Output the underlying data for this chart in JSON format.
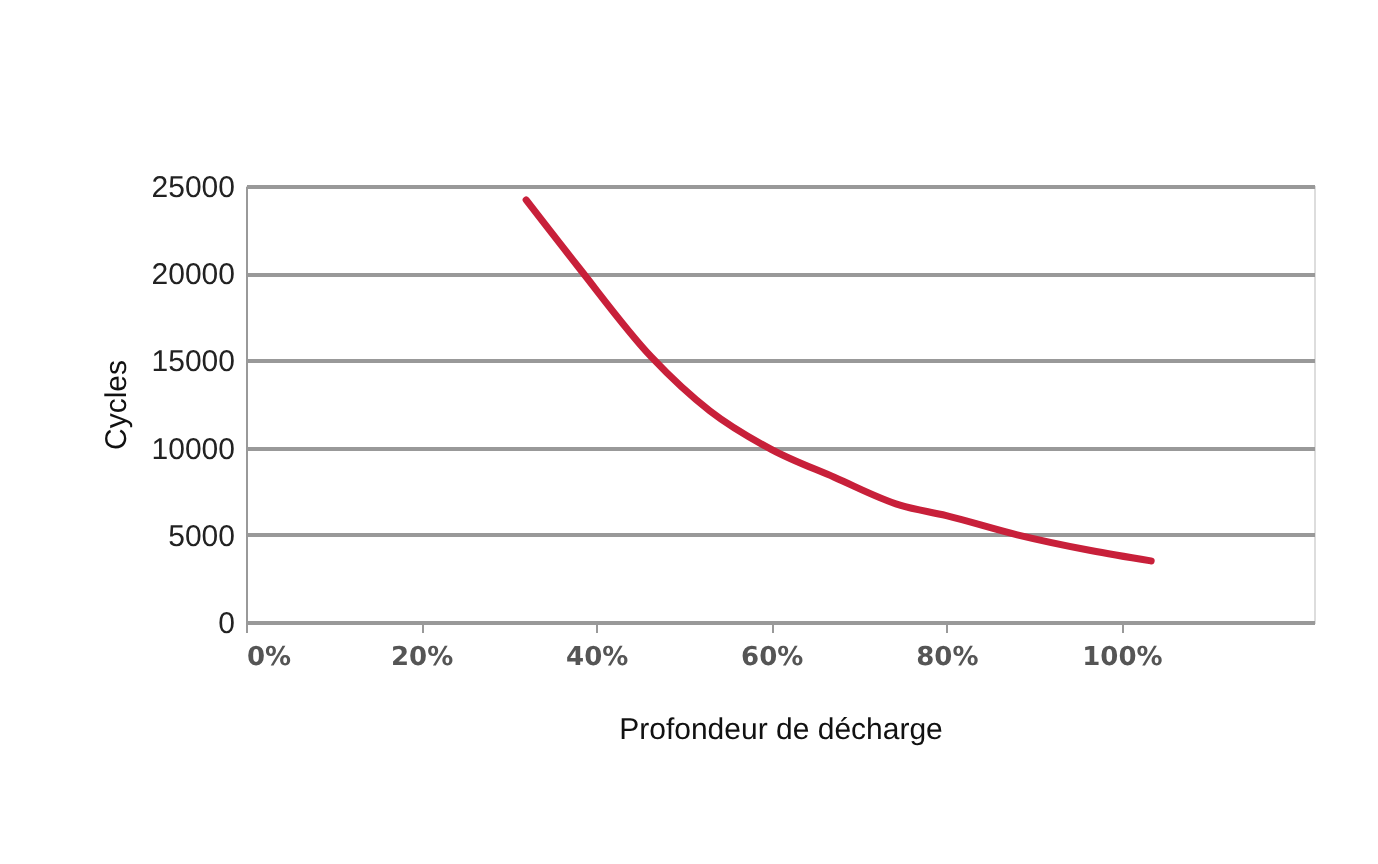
{
  "chart_data": {
    "type": "line",
    "xlabel": "Profondeur de décharge",
    "ylabel": "Cycles",
    "x": [
      32,
      37.9,
      46.3,
      53,
      60,
      67.2,
      74.7,
      80,
      88.1,
      96.5,
      103.4
    ],
    "series": [
      {
        "color": "#c8203a",
        "values": [
          24200,
          20400,
          15200,
          12100,
          9900,
          8300,
          6700,
          6100,
          5000,
          4100,
          3500
        ]
      }
    ],
    "xlim": [
      0,
      122
    ],
    "xticks": [
      {
        "value": 0,
        "label": "0%"
      },
      {
        "value": 20,
        "label": "20%"
      },
      {
        "value": 40,
        "label": "40%"
      },
      {
        "value": 60,
        "label": "60%"
      },
      {
        "value": 80,
        "label": "80%"
      },
      {
        "value": 100,
        "label": "100%"
      }
    ],
    "ylim": [
      0,
      25000
    ],
    "yticks": [
      0,
      5000,
      10000,
      15000,
      20000,
      25000
    ],
    "grid": "y",
    "marker": "none",
    "line_style": "solid"
  }
}
